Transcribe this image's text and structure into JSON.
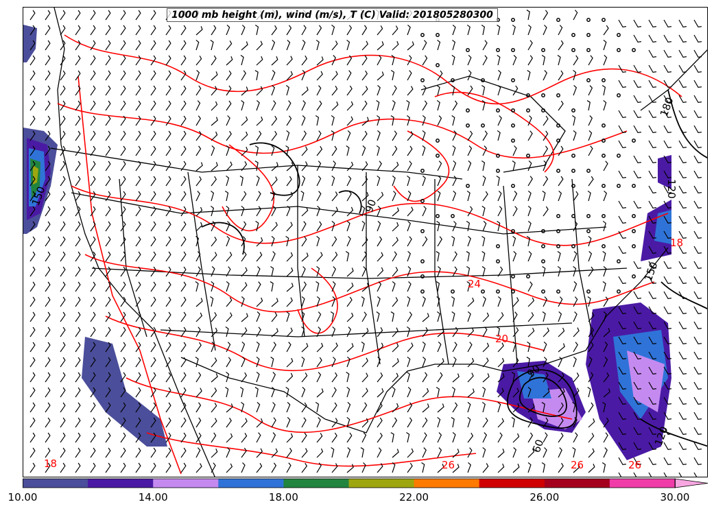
{
  "title": "1000 mb height (m), wind (m/s), T (C) Valid: 201805280300",
  "colorbar": {
    "colors": [
      "#4b4e9a",
      "#4a1aa4",
      "#c58af0",
      "#2f73d8",
      "#21843f",
      "#9ea60f",
      "#ff7a00",
      "#d00000",
      "#a4001e",
      "#f03ca8",
      "#f7a6e0"
    ],
    "extend": "max",
    "tick_labels": [
      "10.00",
      "14.00",
      "18.00",
      "22.00",
      "26.00",
      "30.00"
    ]
  },
  "contour_labels": {
    "temperature_color": "#ff0000",
    "height_color": "#000000",
    "temperature": [
      "18",
      "26",
      "26",
      "26",
      "24",
      "18",
      "20"
    ],
    "height": [
      "150",
      "120",
      "150",
      "120",
      "60",
      "90",
      "180",
      "90"
    ]
  }
}
